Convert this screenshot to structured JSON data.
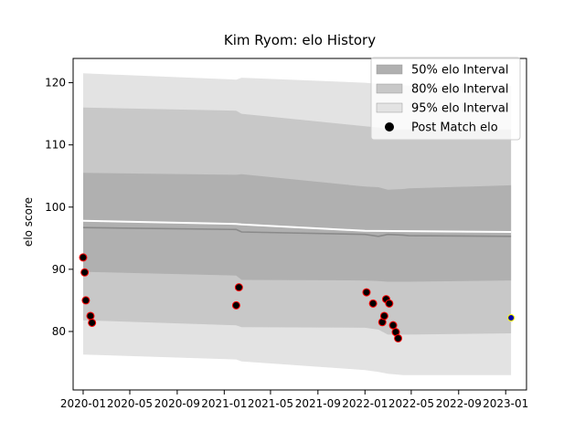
{
  "chart_data": {
    "type": "line",
    "title": "Kim Ryom: elo History",
    "xlabel": "",
    "ylabel": "elo score",
    "xlim": [
      "2019-12-06",
      "2023-02-24"
    ],
    "ylim": [
      70.6,
      123.9
    ],
    "x_ticks": [
      "2020-01",
      "2020-05",
      "2020-09",
      "2021-01",
      "2021-05",
      "2021-09",
      "2022-01",
      "2022-05",
      "2022-09",
      "2023-01"
    ],
    "y_ticks": [
      80,
      90,
      100,
      110,
      120
    ],
    "legend_position": "top-right",
    "legend": [
      {
        "label": "50% elo Interval",
        "kind": "band",
        "color": "#b0b0b0"
      },
      {
        "label": "80% elo Interval",
        "kind": "band",
        "color": "#c8c8c8"
      },
      {
        "label": "95% elo Interval",
        "kind": "band",
        "color": "#e3e3e3"
      },
      {
        "label": "Post Match elo",
        "kind": "marker",
        "color": "#000000"
      }
    ],
    "band_x": [
      "2020-01-01",
      "2021-02-01",
      "2021-02-15",
      "2022-01-01",
      "2022-02-05",
      "2022-03-01",
      "2022-04-10",
      "2022-04-25",
      "2023-01-15"
    ],
    "bands": {
      "p95_upper": [
        121.5,
        120.5,
        120.8,
        120.0,
        119.8,
        119.7,
        119.6,
        119.5,
        119.5
      ],
      "p80_upper": [
        116.0,
        115.5,
        115.0,
        113.0,
        112.8,
        112.5,
        112.5,
        112.5,
        112.5
      ],
      "p50_upper": [
        105.5,
        105.2,
        105.3,
        103.3,
        103.2,
        102.8,
        102.9,
        103.0,
        103.5
      ],
      "p50_lower": [
        89.6,
        89.0,
        88.3,
        88.2,
        88.1,
        88.0,
        88.0,
        88.0,
        88.2
      ],
      "p80_lower": [
        81.8,
        81.0,
        80.7,
        80.6,
        80.3,
        79.5,
        79.5,
        79.5,
        79.7
      ],
      "p95_lower": [
        76.3,
        75.5,
        75.2,
        73.8,
        73.5,
        73.2,
        73.0,
        73.0,
        73.0
      ]
    },
    "mean_line": {
      "x": [
        "2020-01-01",
        "2021-02-01",
        "2021-02-15",
        "2022-01-01",
        "2023-01-15"
      ],
      "y": [
        97.8,
        97.3,
        97.2,
        96.2,
        96.0
      ]
    },
    "median_line": {
      "x": [
        "2020-01-01",
        "2021-02-01",
        "2021-02-15",
        "2022-01-01",
        "2022-02-05",
        "2022-03-01",
        "2022-04-10",
        "2022-04-25",
        "2023-01-15"
      ],
      "y": [
        96.7,
        96.4,
        96.0,
        95.6,
        95.3,
        95.6,
        95.5,
        95.4,
        95.3
      ]
    },
    "points": [
      {
        "x": "2020-01-01",
        "y": 91.9
      },
      {
        "x": "2020-01-05",
        "y": 89.5
      },
      {
        "x": "2020-01-08",
        "y": 85.0
      },
      {
        "x": "2020-01-20",
        "y": 82.5
      },
      {
        "x": "2020-01-24",
        "y": 81.4
      },
      {
        "x": "2021-02-01",
        "y": 84.2
      },
      {
        "x": "2021-02-08",
        "y": 87.1
      },
      {
        "x": "2022-01-05",
        "y": 86.3
      },
      {
        "x": "2022-01-22",
        "y": 84.5
      },
      {
        "x": "2022-02-15",
        "y": 81.5
      },
      {
        "x": "2022-02-20",
        "y": 82.5
      },
      {
        "x": "2022-02-25",
        "y": 85.2
      },
      {
        "x": "2022-03-05",
        "y": 84.5
      },
      {
        "x": "2022-03-15",
        "y": 81.0
      },
      {
        "x": "2022-03-22",
        "y": 79.9
      },
      {
        "x": "2022-03-28",
        "y": 78.9
      }
    ],
    "current_point": {
      "x": "2023-01-15",
      "y": 82.2
    },
    "colors": {
      "p95": "#e3e3e3",
      "p80": "#c8c8c8",
      "p50": "#b0b0b0",
      "mean_line": "#ffffff",
      "median_line": "#8a8a8a",
      "point_fill": "#000000",
      "point_edge": "#ff0000",
      "current_fill": "#0000aa",
      "current_edge": "#ffff00"
    }
  }
}
